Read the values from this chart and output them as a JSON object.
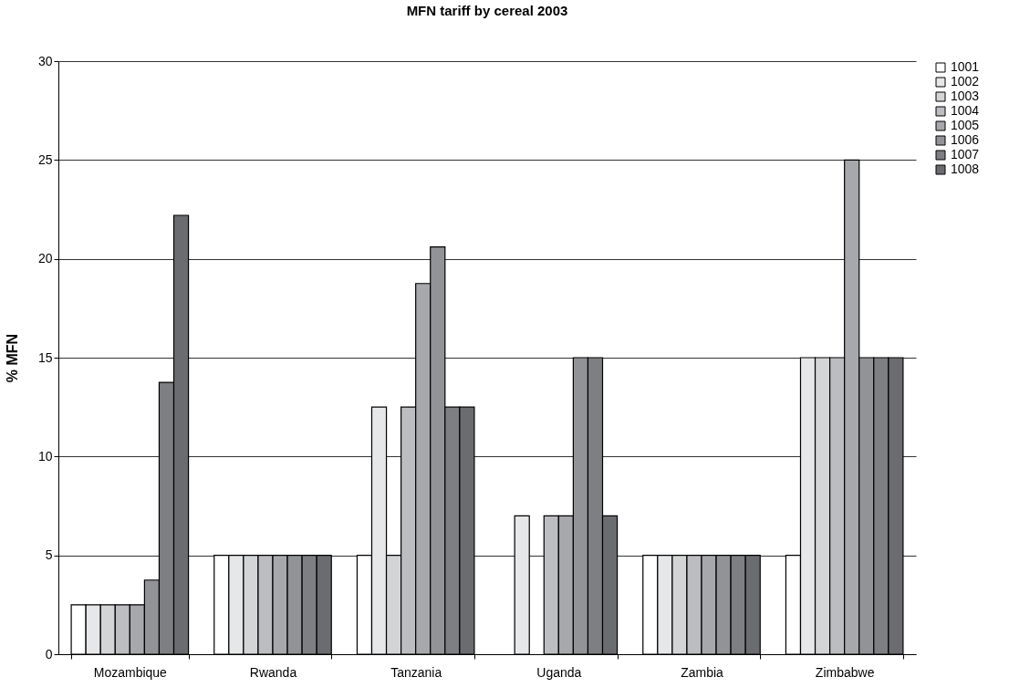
{
  "chart_data": {
    "type": "bar",
    "title": "MFN tariff by cereal 2003",
    "ylabel": "% MFN",
    "categories": [
      "Mozambique",
      "Rwanda",
      "Tanzania",
      "Uganda",
      "Zambia",
      "Zimbabwe"
    ],
    "series": [
      {
        "name": "1001",
        "color": "#ffffff",
        "values": [
          2.5,
          5,
          5,
          null,
          5,
          5
        ]
      },
      {
        "name": "1002",
        "color": "#e6e7e9",
        "values": [
          2.5,
          5,
          12.5,
          7,
          5,
          15
        ]
      },
      {
        "name": "1003",
        "color": "#d3d4d6",
        "values": [
          2.5,
          5,
          5,
          null,
          5,
          15
        ]
      },
      {
        "name": "1004",
        "color": "#bcbdc0",
        "values": [
          2.5,
          5,
          12.5,
          7,
          5,
          15
        ]
      },
      {
        "name": "1005",
        "color": "#a7a8ab",
        "values": [
          2.5,
          5,
          18.75,
          7,
          5,
          25
        ]
      },
      {
        "name": "1006",
        "color": "#929396",
        "values": [
          3.75,
          5,
          20.6,
          15,
          5,
          15
        ]
      },
      {
        "name": "1007",
        "color": "#7e7f83",
        "values": [
          13.75,
          5,
          12.5,
          15,
          5,
          15
        ]
      },
      {
        "name": "1008",
        "color": "#6b6c6f",
        "values": [
          22.2,
          5,
          12.5,
          7,
          5,
          15
        ]
      }
    ],
    "ylim": [
      0,
      30
    ],
    "yticks": [
      0,
      5,
      10,
      15,
      20,
      25,
      30
    ],
    "grid": "y",
    "legend": "right"
  }
}
